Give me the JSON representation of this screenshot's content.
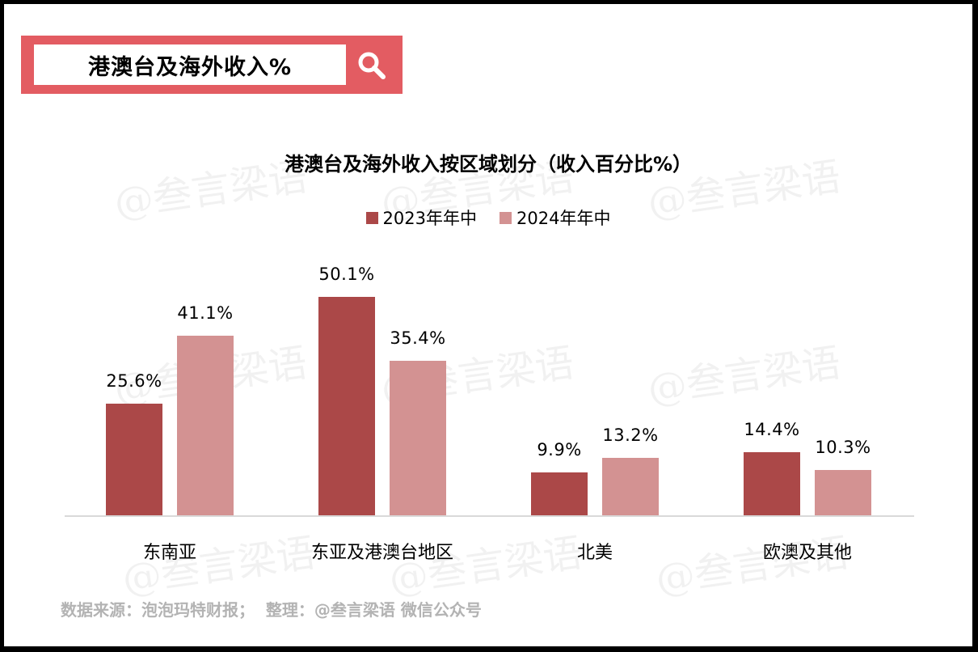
{
  "search": {
    "text": "港澳台及海外收入%",
    "icon": "search-icon",
    "box_color": "#e35c62"
  },
  "watermark": {
    "text": "@叁言梁语"
  },
  "chart_data": {
    "type": "bar",
    "title": "港澳台及海外收入按区域划分（收入百分比%）",
    "categories": [
      "东南亚",
      "东亚及港澳台地区",
      "北美",
      "欧澳及其他"
    ],
    "series": [
      {
        "name": "2023年年中",
        "color": "#ab4848",
        "values": [
          25.6,
          50.1,
          9.9,
          14.4
        ],
        "labels": [
          "25.6%",
          "50.1%",
          "9.9%",
          "14.4%"
        ]
      },
      {
        "name": "2024年年中",
        "color": "#d39292",
        "values": [
          41.1,
          35.4,
          13.2,
          10.3
        ],
        "labels": [
          "41.1%",
          "35.4%",
          "13.2%",
          "10.3%"
        ]
      }
    ],
    "xlabel": "",
    "ylabel": "",
    "ylim": [
      0,
      55
    ],
    "grid": false,
    "y_axis_visible": false,
    "legend_position": "top",
    "data_labels": true
  },
  "footer": {
    "source": "数据来源：泡泡玛特财报；  整理：@叁言梁语 微信公众号"
  }
}
